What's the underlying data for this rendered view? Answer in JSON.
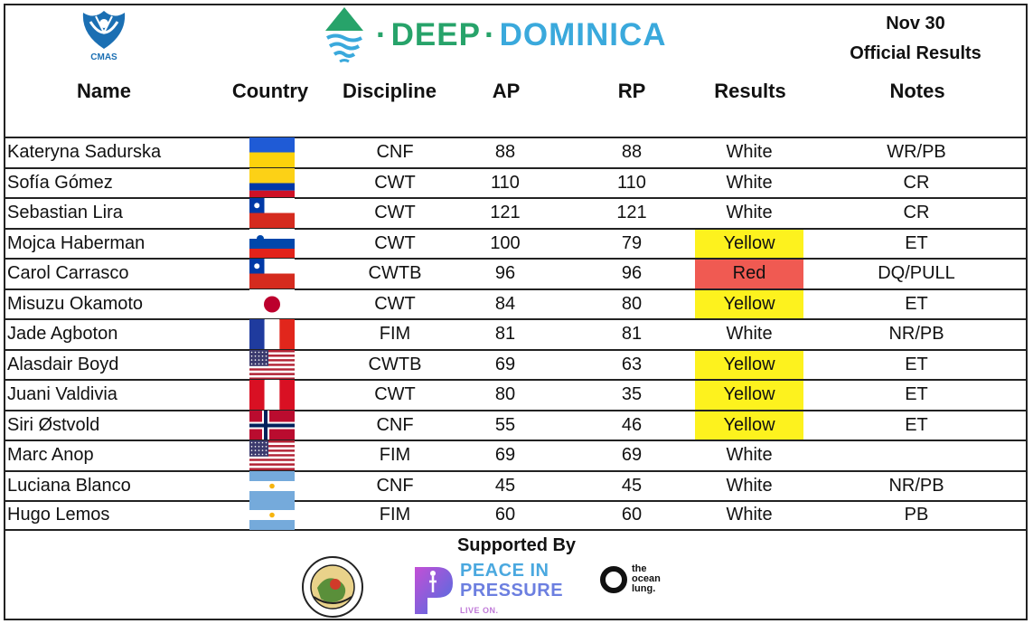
{
  "header": {
    "org_logo_text": "CMAS",
    "brand": {
      "word1": "DEEP",
      "word2": "DOMINICA"
    },
    "date": "Nov 30",
    "subtitle": "Official Results"
  },
  "columns": {
    "name": "Name",
    "country": "Country",
    "discipline": "Discipline",
    "ap": "AP",
    "rp": "RP",
    "results": "Results",
    "notes": "Notes"
  },
  "rows": [
    {
      "name": "Kateryna Sadurska",
      "flag": "ukraine",
      "discipline": "CNF",
      "ap": "88",
      "rp": "88",
      "result": "White",
      "notes": "WR/PB"
    },
    {
      "name": "Sofía Gómez",
      "flag": "colombia",
      "discipline": "CWT",
      "ap": "110",
      "rp": "110",
      "result": "White",
      "notes": "CR"
    },
    {
      "name": "Sebastian Lira",
      "flag": "chile",
      "discipline": "CWT",
      "ap": "121",
      "rp": "121",
      "result": "White",
      "notes": "CR"
    },
    {
      "name": "Mojca Haberman",
      "flag": "slovenia",
      "discipline": "CWT",
      "ap": "100",
      "rp": "79",
      "result": "Yellow",
      "notes": "ET"
    },
    {
      "name": "Carol Carrasco",
      "flag": "chile",
      "discipline": "CWTB",
      "ap": "96",
      "rp": "96",
      "result": "Red",
      "notes": "DQ/PULL"
    },
    {
      "name": "Misuzu Okamoto",
      "flag": "japan",
      "discipline": "CWT",
      "ap": "84",
      "rp": "80",
      "result": "Yellow",
      "notes": "ET"
    },
    {
      "name": "Jade Agboton",
      "flag": "france",
      "discipline": "FIM",
      "ap": "81",
      "rp": "81",
      "result": "White",
      "notes": "NR/PB"
    },
    {
      "name": "Alasdair Boyd",
      "flag": "usa",
      "discipline": "CWTB",
      "ap": "69",
      "rp": "63",
      "result": "Yellow",
      "notes": "ET"
    },
    {
      "name": "Juani Valdivia",
      "flag": "peru",
      "discipline": "CWT",
      "ap": "80",
      "rp": "35",
      "result": "Yellow",
      "notes": "ET"
    },
    {
      "name": "Siri Østvold",
      "flag": "norway",
      "discipline": "CNF",
      "ap": "55",
      "rp": "46",
      "result": "Yellow",
      "notes": "ET"
    },
    {
      "name": "Marc Anop",
      "flag": "usa",
      "discipline": "FIM",
      "ap": "69",
      "rp": "69",
      "result": "White",
      "notes": ""
    },
    {
      "name": "Luciana Blanco",
      "flag": "argentina",
      "discipline": "CNF",
      "ap": "45",
      "rp": "45",
      "result": "White",
      "notes": "NR/PB"
    },
    {
      "name": "Hugo Lemos",
      "flag": "argentina",
      "discipline": "FIM",
      "ap": "60",
      "rp": "60",
      "result": "White",
      "notes": "PB"
    }
  ],
  "footer": {
    "supported_by": "Supported By",
    "sponsors": {
      "nature_island": "NATURE ISLAND DIVE · DOMINICA",
      "pip_line1": "PEACE IN",
      "pip_line2": "PRESSURE",
      "pip_tag": "LIVE ON.",
      "ocean_lung": [
        "the",
        "ocean",
        "lung."
      ]
    }
  },
  "colors": {
    "yellow": "#fdf21e",
    "red": "#f05a52",
    "brand_green": "#27a36a",
    "brand_blue": "#3aa9dc"
  }
}
